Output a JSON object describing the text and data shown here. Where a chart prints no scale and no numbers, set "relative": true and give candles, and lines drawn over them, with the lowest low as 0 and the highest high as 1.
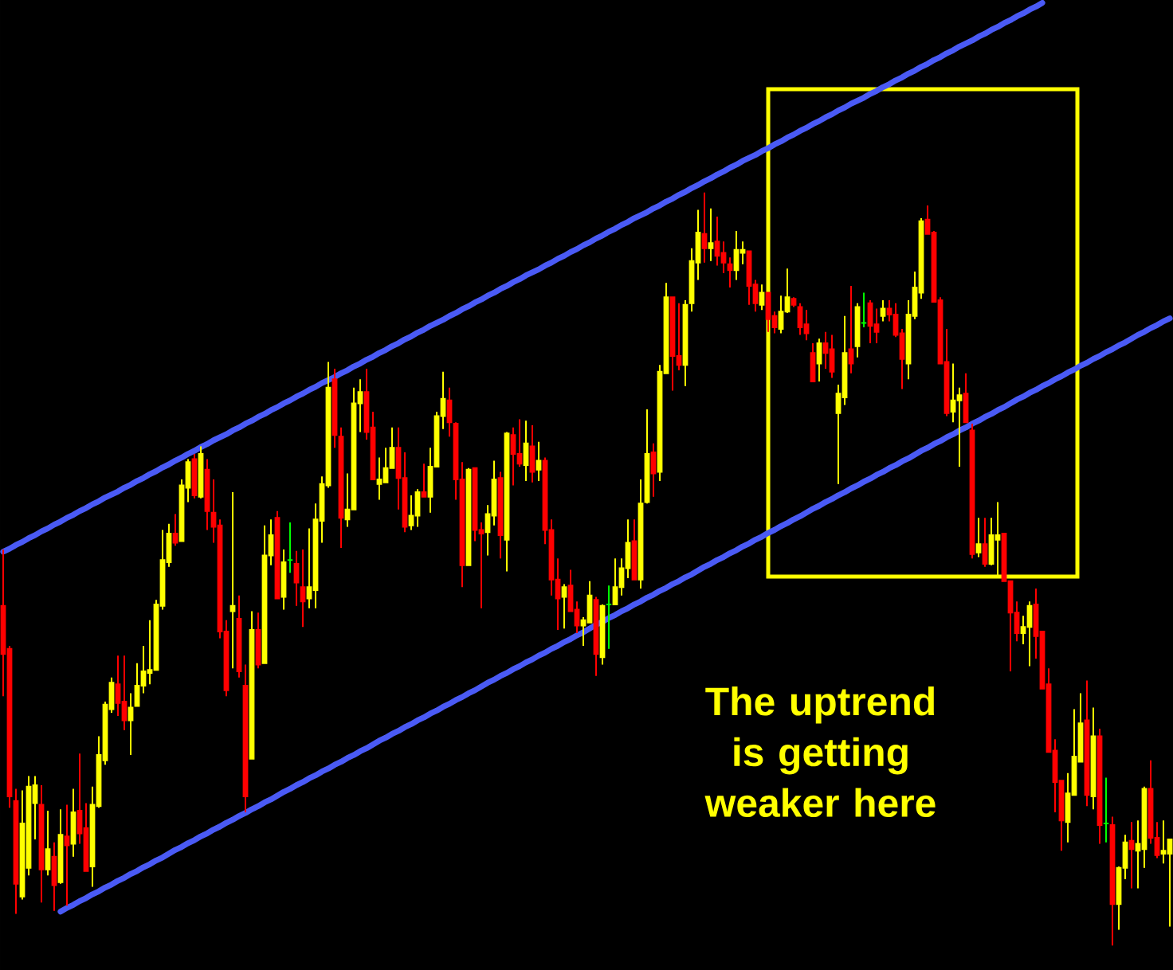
{
  "chart_data": {
    "type": "candlestick",
    "relative": true,
    "categories": [
      null,
      null,
      null,
      null,
      null,
      null,
      null,
      null,
      null,
      null,
      null,
      null,
      null,
      null,
      null,
      null,
      null,
      null,
      null,
      null,
      null,
      null,
      null,
      null,
      null,
      null,
      null,
      null,
      null,
      null,
      null,
      null,
      null,
      null,
      null,
      null,
      null,
      null,
      null,
      null,
      null,
      null,
      null,
      null,
      null,
      null,
      null,
      null,
      null,
      null,
      null,
      null,
      null,
      null,
      null,
      null,
      null,
      null,
      null,
      null,
      null,
      null,
      null,
      null,
      null,
      null,
      null,
      null,
      null,
      null,
      null,
      null,
      null,
      null,
      null,
      null,
      null,
      null,
      null,
      null,
      null,
      null,
      null,
      null,
      null,
      null,
      null,
      null,
      null,
      null,
      null,
      null,
      null,
      null,
      null,
      null,
      null,
      null,
      null,
      null,
      null,
      null,
      null,
      null,
      null,
      null,
      null,
      null,
      null,
      null,
      null,
      null,
      null,
      null,
      null,
      null,
      null,
      null,
      null,
      null,
      null,
      null,
      null,
      null,
      null,
      null,
      null,
      null,
      null,
      null,
      null,
      null,
      null,
      null,
      null,
      null,
      null,
      null,
      null,
      null,
      null,
      null,
      null,
      null,
      null,
      null,
      null,
      null,
      null,
      null,
      null,
      null,
      null,
      null,
      null,
      null,
      null,
      null,
      null,
      null,
      null,
      null,
      null,
      null,
      null,
      null,
      null,
      null,
      null,
      null,
      null,
      null,
      null,
      null,
      null,
      null,
      null,
      null,
      null,
      null,
      null,
      null,
      null,
      null
    ],
    "ohlc": [
      [
        0.451,
        0.526,
        0.331,
        0.387
      ],
      [
        0.394,
        0.398,
        0.183,
        0.198
      ],
      [
        0.192,
        0.208,
        0.042,
        0.082
      ],
      [
        0.065,
        0.206,
        0.061,
        0.162
      ],
      [
        0.103,
        0.225,
        0.093,
        0.211
      ],
      [
        0.189,
        0.225,
        0.141,
        0.213
      ],
      [
        0.187,
        0.213,
        0.057,
        0.101
      ],
      [
        0.101,
        0.179,
        0.093,
        0.128
      ],
      [
        0.118,
        0.137,
        0.046,
        0.08
      ],
      [
        0.084,
        0.181,
        0.082,
        0.147
      ],
      [
        0.145,
        0.187,
        0.053,
        0.133
      ],
      [
        0.135,
        0.208,
        0.118,
        0.177
      ],
      [
        0.179,
        0.255,
        0.135,
        0.149
      ],
      [
        0.156,
        0.189,
        0.099,
        0.099
      ],
      [
        0.105,
        0.211,
        0.078,
        0.187
      ],
      [
        0.185,
        0.278,
        0.183,
        0.253
      ],
      [
        0.246,
        0.324,
        0.24,
        0.32
      ],
      [
        0.314,
        0.356,
        0.309,
        0.349
      ],
      [
        0.347,
        0.385,
        0.305,
        0.322
      ],
      [
        0.324,
        0.385,
        0.286,
        0.299
      ],
      [
        0.299,
        0.335,
        0.253,
        0.316
      ],
      [
        0.318,
        0.375,
        0.318,
        0.345
      ],
      [
        0.345,
        0.398,
        0.335,
        0.364
      ],
      [
        0.362,
        0.432,
        0.347,
        0.366
      ],
      [
        0.366,
        0.459,
        0.366,
        0.453
      ],
      [
        0.451,
        0.552,
        0.446,
        0.512
      ],
      [
        0.509,
        0.56,
        0.503,
        0.547
      ],
      [
        0.547,
        0.573,
        0.531,
        0.535
      ],
      [
        0.537,
        0.619,
        0.537,
        0.611
      ],
      [
        0.608,
        0.646,
        0.589,
        0.642
      ],
      [
        0.646,
        0.653,
        0.594,
        0.598
      ],
      [
        0.596,
        0.663,
        0.594,
        0.653
      ],
      [
        0.632,
        0.646,
        0.552,
        0.577
      ],
      [
        0.575,
        0.619,
        0.535,
        0.556
      ],
      [
        0.558,
        0.566,
        0.408,
        0.417
      ],
      [
        0.417,
        0.432,
        0.331,
        0.339
      ],
      [
        0.444,
        0.602,
        0.368,
        0.451
      ],
      [
        0.434,
        0.465,
        0.356,
        0.364
      ],
      [
        0.345,
        0.373,
        0.177,
        0.198
      ],
      [
        0.248,
        0.444,
        0.248,
        0.419
      ],
      [
        0.419,
        0.442,
        0.368,
        0.373
      ],
      [
        0.375,
        0.558,
        0.375,
        0.518
      ],
      [
        0.518,
        0.566,
        0.505,
        0.545
      ],
      [
        0.568,
        0.577,
        0.461,
        0.461
      ],
      [
        0.463,
        0.526,
        0.446,
        0.509
      ],
      [
        0.512,
        0.562,
        0.495,
        0.512
      ],
      [
        0.507,
        0.524,
        0.451,
        0.482
      ],
      [
        0.476,
        0.526,
        0.423,
        0.457
      ],
      [
        0.461,
        0.554,
        0.448,
        0.476
      ],
      [
        0.472,
        0.587,
        0.448,
        0.566
      ],
      [
        0.564,
        0.623,
        0.535,
        0.613
      ],
      [
        0.611,
        0.775,
        0.608,
        0.741
      ],
      [
        0.752,
        0.766,
        0.661,
        0.678
      ],
      [
        0.676,
        0.688,
        0.528,
        0.568
      ],
      [
        0.566,
        0.627,
        0.556,
        0.579
      ],
      [
        0.579,
        0.741,
        0.579,
        0.72
      ],
      [
        0.72,
        0.752,
        0.682,
        0.735
      ],
      [
        0.735,
        0.766,
        0.672,
        0.682
      ],
      [
        0.688,
        0.709,
        0.619,
        0.619
      ],
      [
        0.613,
        0.648,
        0.592,
        0.619
      ],
      [
        0.615,
        0.661,
        0.615,
        0.634
      ],
      [
        0.634,
        0.688,
        0.634,
        0.661
      ],
      [
        0.661,
        0.688,
        0.579,
        0.621
      ],
      [
        0.621,
        0.655,
        0.549,
        0.556
      ],
      [
        0.558,
        0.598,
        0.552,
        0.571
      ],
      [
        0.571,
        0.606,
        0.556,
        0.602
      ],
      [
        0.602,
        0.64,
        0.596,
        0.596
      ],
      [
        0.596,
        0.661,
        0.575,
        0.636
      ],
      [
        0.636,
        0.709,
        0.636,
        0.703
      ],
      [
        0.703,
        0.762,
        0.686,
        0.726
      ],
      [
        0.724,
        0.741,
        0.676,
        0.695
      ],
      [
        0.693,
        0.695,
        0.592,
        0.619
      ],
      [
        0.619,
        0.642,
        0.476,
        0.505
      ],
      [
        0.505,
        0.634,
        0.505,
        0.632
      ],
      [
        0.634,
        0.634,
        0.537,
        0.552
      ],
      [
        0.552,
        0.562,
        0.448,
        0.547
      ],
      [
        0.549,
        0.585,
        0.518,
        0.573
      ],
      [
        0.571,
        0.644,
        0.558,
        0.619
      ],
      [
        0.621,
        0.629,
        0.514,
        0.545
      ],
      [
        0.539,
        0.682,
        0.497,
        0.68
      ],
      [
        0.678,
        0.688,
        0.611,
        0.653
      ],
      [
        0.653,
        0.699,
        0.636,
        0.64
      ],
      [
        0.638,
        0.697,
        0.617,
        0.667
      ],
      [
        0.663,
        0.691,
        0.615,
        0.629
      ],
      [
        0.632,
        0.669,
        0.617,
        0.644
      ],
      [
        0.644,
        0.648,
        0.533,
        0.552
      ],
      [
        0.552,
        0.566,
        0.465,
        0.486
      ],
      [
        0.486,
        0.514,
        0.419,
        0.461
      ],
      [
        0.463,
        0.48,
        0.421,
        0.476
      ],
      [
        0.478,
        0.499,
        0.444,
        0.444
      ],
      [
        0.446,
        0.457,
        0.415,
        0.425
      ],
      [
        0.425,
        0.436,
        0.398,
        0.432
      ],
      [
        0.429,
        0.484,
        0.429,
        0.465
      ],
      [
        0.459,
        0.463,
        0.358,
        0.387
      ],
      [
        0.383,
        0.453,
        0.373,
        0.451
      ],
      [
        0.453,
        0.478,
        0.394,
        0.453
      ],
      [
        0.453,
        0.514,
        0.453,
        0.476
      ],
      [
        0.476,
        0.514,
        0.465,
        0.501
      ],
      [
        0.501,
        0.566,
        0.488,
        0.535
      ],
      [
        0.537,
        0.566,
        0.486,
        0.486
      ],
      [
        0.486,
        0.619,
        0.474,
        0.587
      ],
      [
        0.589,
        0.712,
        0.587,
        0.653
      ],
      [
        0.655,
        0.667,
        0.596,
        0.627
      ],
      [
        0.629,
        0.771,
        0.617,
        0.762
      ],
      [
        0.76,
        0.88,
        0.76,
        0.861
      ],
      [
        0.861,
        0.861,
        0.737,
        0.783
      ],
      [
        0.783,
        0.853,
        0.764,
        0.771
      ],
      [
        0.771,
        0.857,
        0.743,
        0.851
      ],
      [
        0.853,
        0.926,
        0.842,
        0.909
      ],
      [
        0.907,
        0.977,
        0.884,
        0.947
      ],
      [
        0.945,
        1,
        0.907,
        0.926
      ],
      [
        0.926,
        0.979,
        0.909,
        0.933
      ],
      [
        0.935,
        0.968,
        0.903,
        0.916
      ],
      [
        0.92,
        0.935,
        0.893,
        0.907
      ],
      [
        0.905,
        0.914,
        0.874,
        0.897
      ],
      [
        0.897,
        0.949,
        0.884,
        0.924
      ],
      [
        0.92,
        0.935,
        0.905,
        0.924
      ],
      [
        0.922,
        0.922,
        0.851,
        0.876
      ],
      [
        0.878,
        0.884,
        0.842,
        0.853
      ],
      [
        0.851,
        0.878,
        0.844,
        0.867
      ],
      [
        0.867,
        0.867,
        0.815,
        0.832
      ],
      [
        0.836,
        0.842,
        0.813,
        0.821
      ],
      [
        0.819,
        0.863,
        0.813,
        0.842
      ],
      [
        0.842,
        0.899,
        0.84,
        0.861
      ],
      [
        0.859,
        0.861,
        0.848,
        0.851
      ],
      [
        0.848,
        0.853,
        0.811,
        0.821
      ],
      [
        0.825,
        0.844,
        0.804,
        0.813
      ],
      [
        0.787,
        0.8,
        0.749,
        0.749
      ],
      [
        0.773,
        0.806,
        0.749,
        0.8
      ],
      [
        0.8,
        0.815,
        0.766,
        0.787
      ],
      [
        0.792,
        0.811,
        0.754,
        0.762
      ],
      [
        0.707,
        0.745,
        0.613,
        0.733
      ],
      [
        0.728,
        0.836,
        0.718,
        0.787
      ],
      [
        0.792,
        0.876,
        0.76,
        0.773
      ],
      [
        0.796,
        0.853,
        0.781,
        0.848
      ],
      [
        0.827,
        0.867,
        0.821,
        0.827
      ],
      [
        0.853,
        0.857,
        0.8,
        0.823
      ],
      [
        0.825,
        0.846,
        0.8,
        0.815
      ],
      [
        0.836,
        0.857,
        0.829,
        0.846
      ],
      [
        0.846,
        0.857,
        0.829,
        0.838
      ],
      [
        0.838,
        0.853,
        0.808,
        0.811
      ],
      [
        0.813,
        0.819,
        0.739,
        0.779
      ],
      [
        0.773,
        0.857,
        0.752,
        0.838
      ],
      [
        0.836,
        0.895,
        0.832,
        0.874
      ],
      [
        0.867,
        0.966,
        0.859,
        0.962
      ],
      [
        0.964,
        0.983,
        0.945,
        0.945
      ],
      [
        0.947,
        0.949,
        0.855,
        0.855
      ],
      [
        0.857,
        0.861,
        0.773,
        0.773
      ],
      [
        0.775,
        0.819,
        0.703,
        0.707
      ],
      [
        0.709,
        0.773,
        0.695,
        0.724
      ],
      [
        0.724,
        0.741,
        0.636,
        0.731
      ],
      [
        0.733,
        0.76,
        0.695,
        0.695
      ],
      [
        0.684,
        0.693,
        0.514,
        0.52
      ],
      [
        0.522,
        0.568,
        0.516,
        0.533
      ],
      [
        0.533,
        0.568,
        0.503,
        0.507
      ],
      [
        0.507,
        0.568,
        0.505,
        0.545
      ],
      [
        0.539,
        0.589,
        0.488,
        0.545
      ],
      [
        0.547,
        0.547,
        0.484,
        0.484
      ],
      [
        0.484,
        0.484,
        0.364,
        0.442
      ],
      [
        0.442,
        0.457,
        0.404,
        0.415
      ],
      [
        0.415,
        0.438,
        0.4,
        0.423
      ],
      [
        0.423,
        0.457,
        0.371,
        0.451
      ],
      [
        0.453,
        0.474,
        0.381,
        0.411
      ],
      [
        0.417,
        0.417,
        0.341,
        0.341
      ],
      [
        0.347,
        0.368,
        0.257,
        0.257
      ],
      [
        0.259,
        0.274,
        0.177,
        0.217
      ],
      [
        0.219,
        0.219,
        0.126,
        0.166
      ],
      [
        0.164,
        0.229,
        0.137,
        0.202
      ],
      [
        0.2,
        0.314,
        0.2,
        0.251
      ],
      [
        0.244,
        0.335,
        0.244,
        0.295
      ],
      [
        0.299,
        0.352,
        0.185,
        0.2
      ],
      [
        0.198,
        0.316,
        0.181,
        0.278
      ],
      [
        0.278,
        0.288,
        0.135,
        0.16
      ],
      [
        0.162,
        0.223,
        0.137,
        0.162
      ],
      [
        0.16,
        0.171,
        0,
        0.055
      ],
      [
        0.055,
        0.105,
        0.021,
        0.103
      ],
      [
        0.103,
        0.147,
        0.088,
        0.137
      ],
      [
        0.139,
        0.164,
        0.076,
        0.128
      ],
      [
        0.126,
        0.166,
        0.076,
        0.135
      ],
      [
        0.128,
        0.211,
        0.103,
        0.208
      ],
      [
        0.208,
        0.246,
        0.135,
        0.143
      ],
      [
        0.143,
        0.164,
        0.116,
        0.12
      ],
      [
        0.122,
        0.166,
        0.109,
        0.126
      ],
      [
        0.122,
        0.141,
        0.025,
        0.141
      ]
    ],
    "colors": [
      "#ff0000",
      "#ff0000",
      "#ff0000",
      "#ffff00",
      "#ffff00",
      "#ffff00",
      "#ff0000",
      "#ffff00",
      "#ff0000",
      "#ffff00",
      "#ff0000",
      "#ffff00",
      "#ff0000",
      "#ff0000",
      "#ffff00",
      "#ffff00",
      "#ffff00",
      "#ffff00",
      "#ff0000",
      "#ff0000",
      "#ffff00",
      "#ffff00",
      "#ffff00",
      "#ffff00",
      "#ffff00",
      "#ffff00",
      "#ffff00",
      "#ff0000",
      "#ffff00",
      "#ffff00",
      "#ff0000",
      "#ffff00",
      "#ff0000",
      "#ff0000",
      "#ff0000",
      "#ff0000",
      "#ffff00",
      "#ff0000",
      "#ff0000",
      "#ffff00",
      "#ff0000",
      "#ffff00",
      "#ffff00",
      "#ff0000",
      "#ffff00",
      "#00ff00",
      "#ff0000",
      "#ff0000",
      "#ffff00",
      "#ffff00",
      "#ffff00",
      "#ffff00",
      "#ff0000",
      "#ff0000",
      "#ffff00",
      "#ffff00",
      "#ffff00",
      "#ff0000",
      "#ff0000",
      "#ffff00",
      "#ffff00",
      "#ffff00",
      "#ff0000",
      "#ff0000",
      "#ffff00",
      "#ffff00",
      "#ff0000",
      "#ffff00",
      "#ffff00",
      "#ffff00",
      "#ff0000",
      "#ff0000",
      "#ff0000",
      "#ffff00",
      "#ff0000",
      "#ff0000",
      "#ffff00",
      "#ffff00",
      "#ff0000",
      "#ffff00",
      "#ff0000",
      "#ff0000",
      "#ffff00",
      "#ff0000",
      "#ffff00",
      "#ff0000",
      "#ff0000",
      "#ff0000",
      "#ffff00",
      "#ff0000",
      "#ff0000",
      "#ffff00",
      "#ffff00",
      "#ff0000",
      "#ffff00",
      "#00ff00",
      "#ffff00",
      "#ffff00",
      "#ffff00",
      "#ff0000",
      "#ffff00",
      "#ffff00",
      "#ff0000",
      "#ffff00",
      "#ffff00",
      "#ff0000",
      "#ff0000",
      "#ffff00",
      "#ffff00",
      "#ffff00",
      "#ff0000",
      "#ffff00",
      "#ff0000",
      "#ff0000",
      "#ff0000",
      "#ffff00",
      "#ffff00",
      "#ff0000",
      "#ff0000",
      "#ffff00",
      "#ff0000",
      "#ff0000",
      "#ffff00",
      "#ffff00",
      "#ff0000",
      "#ff0000",
      "#ff0000",
      "#ff0000",
      "#ffff00",
      "#ff0000",
      "#ff0000",
      "#ffff00",
      "#ffff00",
      "#ff0000",
      "#ffff00",
      "#00ff00",
      "#ff0000",
      "#ff0000",
      "#ffff00",
      "#ff0000",
      "#ff0000",
      "#ff0000",
      "#ffff00",
      "#ffff00",
      "#ffff00",
      "#ff0000",
      "#ff0000",
      "#ff0000",
      "#ff0000",
      "#ffff00",
      "#ffff00",
      "#ff0000",
      "#ff0000",
      "#ffff00",
      "#ff0000",
      "#ffff00",
      "#ffff00",
      "#ff0000",
      "#ff0000",
      "#ff0000",
      "#ffff00",
      "#ffff00",
      "#ff0000",
      "#ff0000",
      "#ff0000",
      "#ff0000",
      "#ff0000",
      "#ffff00",
      "#ffff00",
      "#ffff00",
      "#ff0000",
      "#ffff00",
      "#ff0000",
      "#00ff00",
      "#ff0000",
      "#ffff00",
      "#ffff00",
      "#ff0000",
      "#ffff00",
      "#ffff00",
      "#ff0000",
      "#ff0000",
      "#ffff00",
      "#ffff00"
    ],
    "series": [
      {
        "type": "line",
        "color": "#4a5af5",
        "values": [
          0.523,
          0.527,
          0.532,
          0.536,
          0.541,
          0.545,
          0.55,
          0.554,
          0.559,
          0.563,
          0.568,
          0.572,
          0.577,
          0.581,
          0.586,
          0.59,
          0.595,
          0.599,
          0.603,
          0.608,
          0.612,
          0.617,
          0.621,
          0.626,
          0.63,
          0.635,
          0.639,
          0.644,
          0.648,
          0.653,
          0.657,
          0.662,
          0.666,
          0.671,
          0.675,
          0.679,
          0.684,
          0.688,
          0.693,
          0.697,
          0.702,
          0.706,
          0.711,
          0.715,
          0.72,
          0.724,
          0.729,
          0.733,
          0.738,
          0.742,
          0.747,
          0.751,
          0.755,
          0.76,
          0.764,
          0.769,
          0.773,
          0.778,
          0.782,
          0.787,
          0.791,
          0.796,
          0.8,
          0.805,
          0.809,
          0.814,
          0.818,
          0.823,
          0.827,
          0.831,
          0.836,
          0.84,
          0.845,
          0.849,
          0.854,
          0.858,
          0.863,
          0.867,
          0.872,
          0.876,
          0.881,
          0.885,
          0.89,
          0.894,
          0.898,
          0.903,
          0.907,
          0.912,
          0.916,
          0.921,
          0.925,
          0.93,
          0.934,
          0.939,
          0.943,
          0.948,
          0.952,
          0.957,
          0.961,
          0.966,
          0.97,
          0.974,
          0.979,
          0.983,
          0.988,
          0.992,
          0.997,
          1.001,
          1.006,
          1.01,
          1.015,
          1.019,
          1.024,
          1.028,
          1.033,
          1.037,
          1.042,
          1.046,
          1.05,
          1.055,
          1.059,
          1.064,
          1.068,
          1.073,
          1.077,
          1.082,
          1.086,
          1.091,
          1.095,
          1.1,
          1.104,
          1.109,
          1.113,
          1.118,
          1.122,
          1.126,
          1.131,
          1.135,
          1.14,
          1.144,
          1.149,
          1.153,
          1.158,
          1.162,
          1.167,
          1.171,
          1.176,
          1.18,
          1.185,
          1.189,
          1.194,
          1.198,
          1.202,
          1.207,
          1.211,
          1.216,
          1.22,
          1.225,
          1.229,
          1.234,
          1.238,
          1.243,
          1.247,
          1.252,
          null,
          null,
          null,
          null,
          null,
          null,
          null,
          null,
          null,
          null,
          null,
          null,
          null,
          null,
          null,
          null,
          null,
          null,
          null,
          null
        ]
      },
      {
        "type": "line",
        "color": "#4a5af5",
        "values": [
          null,
          null,
          null,
          null,
          null,
          null,
          null,
          null,
          null,
          0.045,
          0.05,
          0.054,
          0.059,
          0.063,
          0.068,
          0.072,
          0.077,
          0.081,
          0.086,
          0.09,
          0.095,
          0.099,
          0.104,
          0.108,
          0.113,
          0.117,
          0.122,
          0.127,
          0.131,
          0.136,
          0.14,
          0.145,
          0.149,
          0.154,
          0.158,
          0.163,
          0.167,
          0.172,
          0.176,
          0.181,
          0.185,
          0.19,
          0.194,
          0.199,
          0.204,
          0.208,
          0.213,
          0.217,
          0.222,
          0.226,
          0.231,
          0.235,
          0.24,
          0.244,
          0.249,
          0.253,
          0.258,
          0.262,
          0.267,
          0.272,
          0.276,
          0.281,
          0.285,
          0.29,
          0.294,
          0.299,
          0.303,
          0.308,
          0.312,
          0.317,
          0.321,
          0.326,
          0.33,
          0.335,
          0.339,
          0.344,
          0.349,
          0.353,
          0.358,
          0.362,
          0.367,
          0.371,
          0.376,
          0.38,
          0.385,
          0.389,
          0.394,
          0.398,
          0.403,
          0.407,
          0.412,
          0.416,
          0.421,
          0.426,
          0.43,
          0.435,
          0.439,
          0.444,
          0.448,
          0.453,
          0.457,
          0.462,
          0.466,
          0.471,
          0.475,
          0.48,
          0.484,
          0.489,
          0.493,
          0.498,
          0.503,
          0.507,
          0.512,
          0.516,
          0.521,
          0.525,
          0.53,
          0.534,
          0.539,
          0.543,
          0.548,
          0.552,
          0.557,
          0.561,
          0.566,
          0.57,
          0.575,
          0.58,
          0.584,
          0.589,
          0.593,
          0.598,
          0.602,
          0.607,
          0.611,
          0.616,
          0.62,
          0.625,
          0.629,
          0.634,
          0.638,
          0.643,
          0.647,
          0.652,
          0.657,
          0.661,
          0.666,
          0.67,
          0.675,
          0.679,
          0.684,
          0.688,
          0.693,
          0.697,
          0.702,
          0.706,
          0.711,
          0.715,
          0.72,
          0.725,
          0.729,
          0.734,
          0.738,
          0.743,
          0.747,
          0.752,
          0.756,
          0.761,
          0.765,
          0.77,
          0.774,
          0.779,
          0.783,
          0.788,
          0.792,
          0.797,
          0.801,
          0.806,
          0.811,
          0.815,
          0.82,
          0.824,
          0.829,
          0.833
        ]
      }
    ],
    "annotations": [
      "The uptrend is getting weaker here"
    ]
  }
}
